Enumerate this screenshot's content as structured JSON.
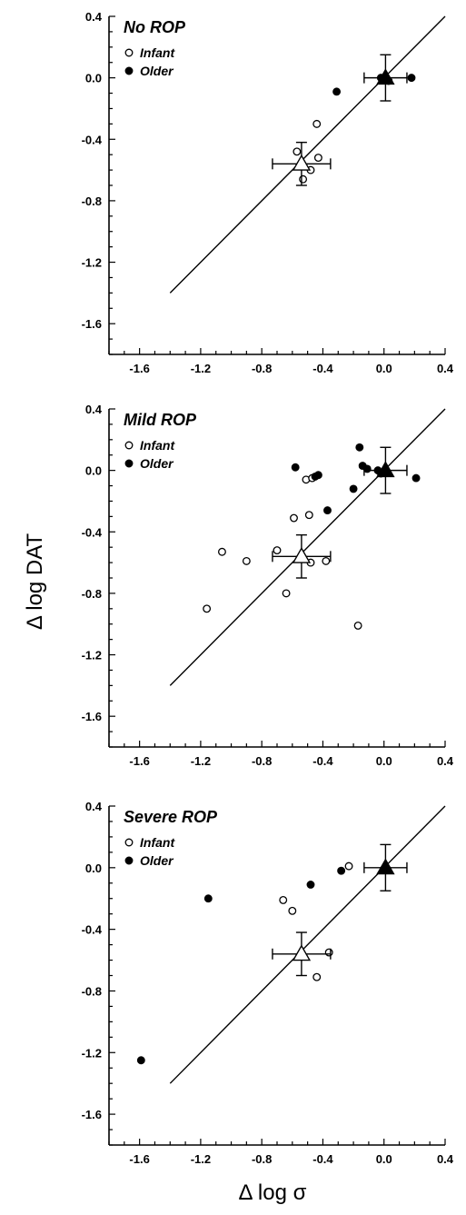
{
  "figure": {
    "ylabel": "Δ log DAT",
    "xlabel": "Δ log σ"
  },
  "colors": {
    "ink": "#000000",
    "open_fill": "#ffffff"
  },
  "chart_data": [
    {
      "type": "scatter",
      "title": "No ROP",
      "xlim": [
        -1.8,
        0.4
      ],
      "ylim": [
        -1.8,
        0.4
      ],
      "xticks": [
        "-1.6",
        "-1.2",
        "-0.8",
        "-0.4",
        "0.0",
        "0.4"
      ],
      "yticks": [
        "0.4",
        "0.0",
        "-0.4",
        "-0.8",
        "-1.2",
        "-1.6"
      ],
      "legend": {
        "placement": "top-left",
        "entries": [
          "Infant",
          "Older"
        ]
      },
      "identity_line": [
        [
          -1.4,
          -1.4
        ],
        [
          0.4,
          0.4
        ]
      ],
      "series": [
        {
          "name": "Infant",
          "marker": "open-circle",
          "points": [
            [
              -0.57,
              -0.48
            ],
            [
              -0.53,
              -0.66
            ],
            [
              -0.48,
              -0.6
            ],
            [
              -0.44,
              -0.3
            ],
            [
              -0.43,
              -0.52
            ]
          ]
        },
        {
          "name": "Older",
          "marker": "filled-circle",
          "points": [
            [
              -0.31,
              -0.09
            ],
            [
              -0.02,
              0.0
            ],
            [
              0.01,
              0.0
            ],
            [
              0.03,
              -0.02
            ],
            [
              0.18,
              0.0
            ]
          ]
        }
      ],
      "means": [
        {
          "group": "Infant",
          "marker": "open-triangle",
          "x": -0.54,
          "y": -0.56,
          "xerr": 0.19,
          "yerr": 0.14
        },
        {
          "group": "Older",
          "marker": "filled-triangle",
          "x": 0.01,
          "y": 0.0,
          "xerr": 0.14,
          "yerr": 0.15
        }
      ]
    },
    {
      "type": "scatter",
      "title": "Mild ROP",
      "xlim": [
        -1.8,
        0.4
      ],
      "ylim": [
        -1.8,
        0.4
      ],
      "xticks": [
        "-1.6",
        "-1.2",
        "-0.8",
        "-0.4",
        "0.0",
        "0.4"
      ],
      "yticks": [
        "0.4",
        "0.0",
        "-0.4",
        "-0.8",
        "-1.2",
        "-1.6"
      ],
      "legend": {
        "placement": "top-left",
        "entries": [
          "Infant",
          "Older"
        ]
      },
      "identity_line": [
        [
          -1.4,
          -1.4
        ],
        [
          0.4,
          0.4
        ]
      ],
      "series": [
        {
          "name": "Infant",
          "marker": "open-circle",
          "points": [
            [
              -1.16,
              -0.9
            ],
            [
              -1.06,
              -0.53
            ],
            [
              -0.9,
              -0.59
            ],
            [
              -0.7,
              -0.52
            ],
            [
              -0.64,
              -0.8
            ],
            [
              -0.59,
              -0.31
            ],
            [
              -0.51,
              -0.06
            ],
            [
              -0.49,
              -0.29
            ],
            [
              -0.48,
              -0.6
            ],
            [
              -0.47,
              -0.05
            ],
            [
              -0.38,
              -0.59
            ],
            [
              -0.17,
              -1.01
            ]
          ]
        },
        {
          "name": "Older",
          "marker": "filled-circle",
          "points": [
            [
              -0.58,
              0.02
            ],
            [
              -0.45,
              -0.04
            ],
            [
              -0.43,
              -0.03
            ],
            [
              -0.37,
              -0.26
            ],
            [
              -0.2,
              -0.12
            ],
            [
              -0.16,
              0.15
            ],
            [
              -0.14,
              0.03
            ],
            [
              -0.11,
              0.01
            ],
            [
              -0.04,
              0.0
            ],
            [
              -0.02,
              -0.02
            ],
            [
              0.21,
              -0.05
            ]
          ]
        }
      ],
      "means": [
        {
          "group": "Infant",
          "marker": "open-triangle",
          "x": -0.54,
          "y": -0.56,
          "xerr": 0.19,
          "yerr": 0.14
        },
        {
          "group": "Older",
          "marker": "filled-triangle",
          "x": 0.01,
          "y": 0.0,
          "xerr": 0.14,
          "yerr": 0.15
        }
      ]
    },
    {
      "type": "scatter",
      "title": "Severe ROP",
      "xlim": [
        -1.8,
        0.4
      ],
      "ylim": [
        -1.8,
        0.4
      ],
      "xticks": [
        "-1.6",
        "-1.2",
        "-0.8",
        "-0.4",
        "0.0",
        "0.4"
      ],
      "yticks": [
        "0.4",
        "0.0",
        "-0.4",
        "-0.8",
        "-1.2",
        "-1.6"
      ],
      "legend": {
        "placement": "top-left",
        "entries": [
          "Infant",
          "Older"
        ]
      },
      "identity_line": [
        [
          -1.4,
          -1.4
        ],
        [
          0.4,
          0.4
        ]
      ],
      "series": [
        {
          "name": "Infant",
          "marker": "open-circle",
          "points": [
            [
              -0.66,
              -0.21
            ],
            [
              -0.6,
              -0.28
            ],
            [
              -0.36,
              -0.55
            ],
            [
              -0.44,
              -0.71
            ],
            [
              -0.23,
              0.01
            ]
          ]
        },
        {
          "name": "Older",
          "marker": "filled-circle",
          "points": [
            [
              -1.59,
              -1.25
            ],
            [
              -1.15,
              -0.2
            ],
            [
              -0.48,
              -0.11
            ],
            [
              -0.28,
              -0.02
            ],
            [
              0.01,
              0.0
            ]
          ]
        }
      ],
      "means": [
        {
          "group": "Infant",
          "marker": "open-triangle",
          "x": -0.54,
          "y": -0.56,
          "xerr": 0.19,
          "yerr": 0.14
        },
        {
          "group": "Older",
          "marker": "filled-triangle",
          "x": 0.01,
          "y": 0.0,
          "xerr": 0.14,
          "yerr": 0.15
        }
      ]
    }
  ]
}
